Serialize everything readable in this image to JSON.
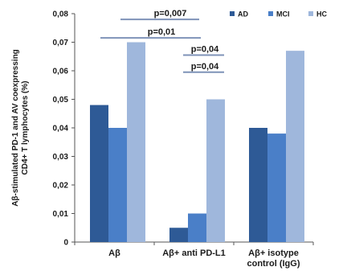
{
  "chart_data": {
    "type": "bar",
    "title": "",
    "xlabel": "",
    "ylabel_lines": [
      "Aβ-stimulated PD-1 and AV coexpressing",
      "CD4+ T lymphocytes (%)"
    ],
    "categories": [
      {
        "lines": [
          "Aβ"
        ]
      },
      {
        "lines": [
          "Aβ+ anti PD-L1"
        ]
      },
      {
        "lines": [
          "Aβ+ isotype",
          "control (IgG)"
        ]
      }
    ],
    "series": [
      {
        "name": "AD",
        "color": "#2e5a96",
        "values": [
          0.048,
          0.005,
          0.04
        ]
      },
      {
        "name": "MCI",
        "color": "#4a7fc8",
        "values": [
          0.04,
          0.01,
          0.038
        ]
      },
      {
        "name": "HC",
        "color": "#9fb7dc",
        "values": [
          0.07,
          0.05,
          0.067
        ]
      }
    ],
    "ylim": [
      0,
      0.08
    ],
    "yticks": [
      {
        "value": 0,
        "label": "0"
      },
      {
        "value": 0.01,
        "label": "0,01"
      },
      {
        "value": 0.02,
        "label": "0,02"
      },
      {
        "value": 0.03,
        "label": "0,03"
      },
      {
        "value": 0.04,
        "label": "0,04"
      },
      {
        "value": 0.05,
        "label": "0,05"
      },
      {
        "value": 0.06,
        "label": "0,06"
      },
      {
        "value": 0.07,
        "label": "0,07"
      },
      {
        "value": 0.08,
        "label": "0,08"
      }
    ],
    "legend_position": "top-right",
    "grid": false,
    "significance": [
      {
        "label": "p=0,007",
        "from_category": 0,
        "to_category": 1,
        "y": 0.078
      },
      {
        "label": "p=0,01",
        "from_category": 0,
        "to_category": 1,
        "y": 0.0715
      },
      {
        "label": "p=0,04",
        "from_category": 1,
        "to_category": 1,
        "y": 0.0655
      },
      {
        "label": "p=0,04",
        "from_category": 1,
        "to_category": 1,
        "y": 0.0595
      }
    ],
    "line_color": "#7f93b8"
  }
}
